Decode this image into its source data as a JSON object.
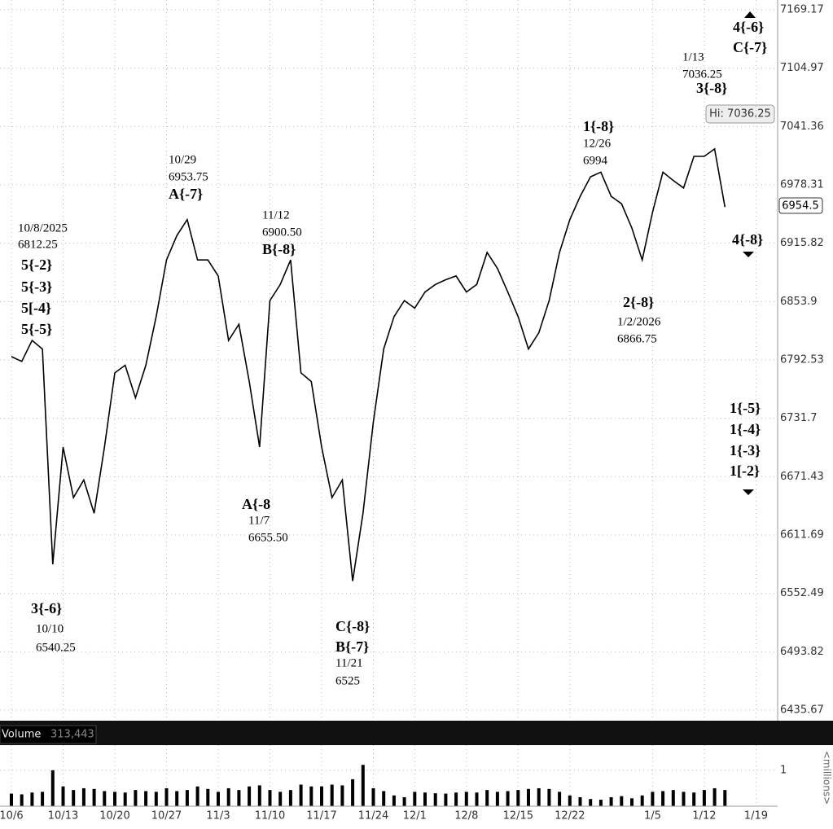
{
  "chart_data": {
    "type": "line",
    "log_scale": true,
    "grid": true,
    "color": "#000000",
    "categories": [
      "10/6",
      null,
      null,
      null,
      null,
      "10/13",
      null,
      null,
      null,
      null,
      "10/20",
      null,
      null,
      null,
      null,
      "10/27",
      null,
      null,
      null,
      null,
      "11/3",
      null,
      null,
      null,
      null,
      "11/10",
      null,
      null,
      null,
      null,
      "11/17",
      null,
      null,
      null,
      null,
      "11/24",
      null,
      null,
      null,
      "12/1",
      null,
      null,
      null,
      null,
      "12/8",
      null,
      null,
      null,
      null,
      "12/15",
      null,
      null,
      null,
      null,
      "12/22",
      null,
      null,
      null,
      null,
      null,
      null,
      null,
      "1/5",
      null,
      null,
      null,
      null,
      "1/12",
      null,
      null,
      null,
      null,
      "1/19"
    ],
    "series": [
      {
        "name": "Price",
        "color": "#000000",
        "values": [
          6796,
          6791,
          6813,
          6804,
          6582,
          6702,
          6650,
          6668,
          6634,
          6702,
          6779,
          6787,
          6753,
          6787,
          6838,
          6898,
          6924,
          6941,
          6898,
          6898,
          6881,
          6813,
          6830,
          6770,
          6702,
          6855,
          6872,
          6898,
          6779,
          6770,
          6702,
          6650,
          6668,
          6565,
          6634,
          6728,
          6804,
          6838,
          6855,
          6847,
          6864,
          6872,
          6877,
          6881,
          6864,
          6872,
          6906,
          6889,
          6864,
          6838,
          6804,
          6821,
          6855,
          6906,
          6941,
          6966,
          6987,
          6992,
          6966,
          6958,
          6932,
          6898,
          6949,
          6992,
          6983,
          6975,
          7009,
          7009,
          7017,
          6954.5,
          null,
          null,
          null
        ]
      }
    ],
    "ylim": [
      6435.67,
      7169.17
    ],
    "yticks": [
      7169.17,
      7104.97,
      7041.36,
      6978.31,
      6915.82,
      6853.9,
      6792.53,
      6731.7,
      6671.43,
      6611.69,
      6552.49,
      6493.82,
      6435.67
    ],
    "last_price": 6954.5,
    "high_label": "Hi: 7036.25",
    "annotations": [
      {
        "lines": [
          {
            "text": "10/8/2025"
          },
          {
            "text": "6812.25"
          },
          {
            "text": "5{-2}",
            "bold": true
          },
          {
            "text": "5{-3}",
            "bold": true
          },
          {
            "text": "5[-4}",
            "bold": true
          },
          {
            "text": "5{-5}",
            "bold": true
          }
        ]
      },
      {
        "lines": [
          {
            "text": "10/29"
          },
          {
            "text": "6953.75"
          },
          {
            "text": "A{-7}",
            "bold": true
          }
        ]
      },
      {
        "lines": [
          {
            "text": "11/12"
          },
          {
            "text": "6900.50"
          },
          {
            "text": "B{-8}",
            "bold": true
          }
        ]
      },
      {
        "lines": [
          {
            "text": "A{-8",
            "bold": true
          },
          {
            "text": "11/7"
          },
          {
            "text": "6655.50"
          }
        ]
      },
      {
        "lines": [
          {
            "text": "3{-6}",
            "bold": true
          },
          {
            "text": "10/10"
          },
          {
            "text": "6540.25"
          }
        ]
      },
      {
        "lines": [
          {
            "text": "C{-8}",
            "bold": true
          },
          {
            "text": "B{-7}",
            "bold": true
          },
          {
            "text": "11/21"
          },
          {
            "text": "6525"
          }
        ]
      },
      {
        "lines": [
          {
            "text": "1{-8}",
            "bold": true
          },
          {
            "text": "12/26"
          },
          {
            "text": "6994"
          }
        ]
      },
      {
        "lines": [
          {
            "text": "2{-8}",
            "bold": true
          },
          {
            "text": "1/2/2026"
          },
          {
            "text": "6866.75"
          }
        ]
      },
      {
        "lines": [
          {
            "text": "1/13"
          },
          {
            "text": "7036.25"
          },
          {
            "text": "3{-8}",
            "bold": true
          }
        ]
      },
      {
        "lines": [
          {
            "text": "4{-6}",
            "bold": true
          },
          {
            "text": "C{-7}",
            "bold": true
          }
        ]
      },
      {
        "lines": [
          {
            "text": "4{-8}",
            "bold": true
          }
        ]
      },
      {
        "lines": [
          {
            "text": "1{-5}",
            "bold": true
          },
          {
            "text": "1{-4}",
            "bold": true
          },
          {
            "text": "1{-3}",
            "bold": true
          },
          {
            "text": "1[-2}",
            "bold": true
          }
        ]
      }
    ],
    "volume": {
      "title": "Volume",
      "last": "313,443",
      "unit": "<millions>",
      "ylim": [
        0,
        1.7
      ],
      "yticks": [
        1
      ],
      "values": [
        0.35,
        0.33,
        0.38,
        0.4,
        1.0,
        0.55,
        0.45,
        0.5,
        0.48,
        0.42,
        0.4,
        0.38,
        0.45,
        0.42,
        0.4,
        0.5,
        0.42,
        0.45,
        0.55,
        0.48,
        0.4,
        0.5,
        0.45,
        0.55,
        0.58,
        0.45,
        0.4,
        0.45,
        0.6,
        0.55,
        0.55,
        0.6,
        0.58,
        0.75,
        1.15,
        0.5,
        0.42,
        0.3,
        0.25,
        0.4,
        0.38,
        0.36,
        0.35,
        0.38,
        0.4,
        0.38,
        0.45,
        0.4,
        0.42,
        0.45,
        0.48,
        0.5,
        0.48,
        0.4,
        0.3,
        0.25,
        0.2,
        0.18,
        0.25,
        0.28,
        0.22,
        0.3,
        0.4,
        0.42,
        0.45,
        0.4,
        0.38,
        0.45,
        0.5,
        0.45,
        null,
        null,
        null
      ]
    }
  }
}
